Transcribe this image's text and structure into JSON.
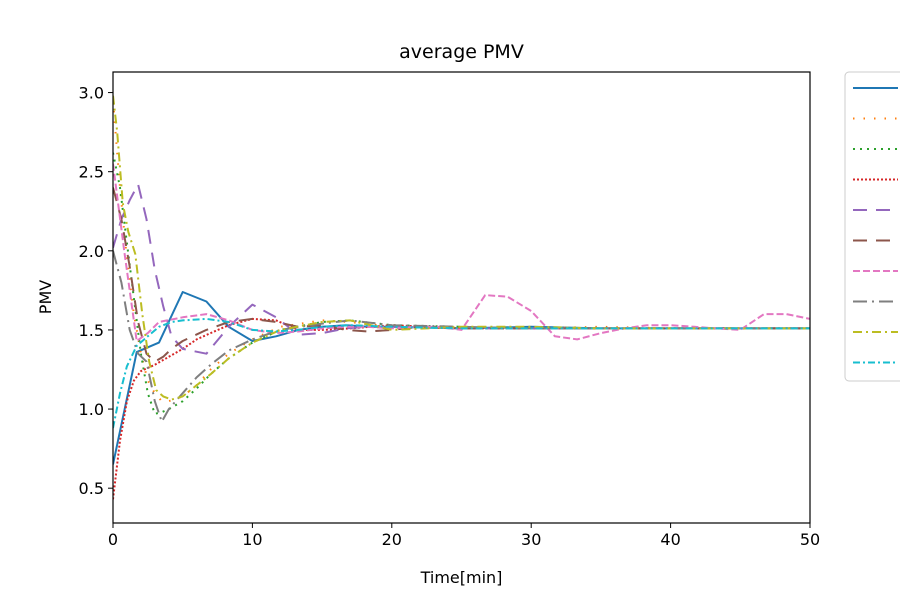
{
  "chart_data": {
    "type": "line",
    "title": "average PMV",
    "xlabel": "Time[min]",
    "ylabel": "PMV",
    "xlim": [
      0,
      50
    ],
    "ylim": [
      0.28,
      3.13
    ],
    "xticks": [
      "0",
      "10",
      "20",
      "30",
      "40",
      "50"
    ],
    "yticks": [
      "0.5",
      "1.0",
      "1.5",
      "2.0",
      "2.5",
      "3.0"
    ],
    "grid": false,
    "legend_position": "outside-right",
    "series": [
      {
        "color": "#1f77b4",
        "dash": "",
        "x": [
          0,
          1.7,
          3.3,
          5,
          6.7,
          8.3,
          10,
          11.7,
          13.3,
          15,
          16.7,
          18.3,
          20,
          25,
          30,
          35,
          40,
          45,
          50
        ],
        "y": [
          0.65,
          1.36,
          1.42,
          1.74,
          1.68,
          1.52,
          1.43,
          1.46,
          1.5,
          1.52,
          1.53,
          1.52,
          1.52,
          1.51,
          1.52,
          1.51,
          1.51,
          1.51,
          1.51
        ]
      },
      {
        "color": "#ff7f0e",
        "dash": "1.5,9",
        "x": [
          0,
          0.5,
          1,
          1.5,
          2,
          2.5,
          3,
          3.5,
          4,
          5,
          6,
          7,
          8.3,
          10,
          12,
          15,
          17,
          20,
          25,
          30,
          35,
          40,
          45,
          50
        ],
        "y": [
          2.95,
          2.4,
          1.95,
          1.6,
          1.35,
          1.18,
          1.1,
          1.05,
          1.05,
          1.08,
          1.15,
          1.25,
          1.35,
          1.44,
          1.52,
          1.56,
          1.55,
          1.52,
          1.51,
          1.51,
          1.52,
          1.51,
          1.51,
          1.51
        ]
      },
      {
        "color": "#2ca02c",
        "dash": "2,5",
        "x": [
          0,
          0.5,
          1,
          1.5,
          2,
          2.5,
          3,
          3.5,
          4,
          5,
          6,
          7,
          8.3,
          10,
          12,
          15,
          17,
          20,
          25,
          30,
          35,
          40,
          45,
          50
        ],
        "y": [
          2.62,
          2.4,
          2.05,
          1.7,
          1.35,
          1.1,
          0.97,
          0.98,
          1.0,
          1.05,
          1.13,
          1.22,
          1.32,
          1.42,
          1.5,
          1.55,
          1.56,
          1.53,
          1.52,
          1.51,
          1.51,
          1.51,
          1.51,
          1.51
        ]
      },
      {
        "color": "#d62728",
        "dash": "2,2",
        "x": [
          0,
          0.5,
          1,
          1.5,
          2,
          3,
          4,
          5,
          6,
          7,
          8.3,
          10,
          11.7,
          13.3,
          15,
          17,
          20,
          25,
          30,
          35,
          40,
          45,
          50
        ],
        "y": [
          0.43,
          0.8,
          1.05,
          1.18,
          1.24,
          1.28,
          1.33,
          1.38,
          1.44,
          1.48,
          1.53,
          1.57,
          1.56,
          1.5,
          1.5,
          1.51,
          1.53,
          1.51,
          1.51,
          1.51,
          1.51,
          1.51,
          1.51
        ]
      },
      {
        "color": "#9467bd",
        "dash": "14,9",
        "x": [
          0,
          0.6,
          1.2,
          1.8,
          2.4,
          3,
          3.6,
          4.2,
          5,
          6.7,
          8.3,
          10,
          11.7,
          13.3,
          15,
          16.7,
          18.3,
          20,
          25,
          30,
          35,
          40,
          45,
          50
        ],
        "y": [
          2.02,
          2.2,
          2.32,
          2.42,
          2.2,
          1.88,
          1.65,
          1.46,
          1.38,
          1.35,
          1.52,
          1.66,
          1.58,
          1.47,
          1.48,
          1.51,
          1.52,
          1.52,
          1.51,
          1.51,
          1.51,
          1.51,
          1.51,
          1.51
        ]
      },
      {
        "color": "#8c564b",
        "dash": "14,9",
        "x": [
          0,
          0.6,
          1.2,
          1.8,
          2.4,
          3,
          3.6,
          4.2,
          5,
          6.7,
          8.3,
          10,
          11.7,
          13.3,
          15,
          16.7,
          18.3,
          20,
          22,
          25,
          30,
          35,
          40,
          45,
          50
        ],
        "y": [
          2.4,
          2.2,
          1.9,
          1.55,
          1.35,
          1.3,
          1.33,
          1.38,
          1.43,
          1.5,
          1.55,
          1.57,
          1.55,
          1.52,
          1.53,
          1.5,
          1.49,
          1.5,
          1.52,
          1.51,
          1.51,
          1.51,
          1.51,
          1.51,
          1.51
        ]
      },
      {
        "color": "#e377c2",
        "dash": "7,3",
        "x": [
          0,
          0.8,
          1.7,
          2.5,
          3.3,
          5,
          6.7,
          8.3,
          10,
          11.7,
          13.3,
          15,
          16.7,
          18.3,
          20,
          21.7,
          23.3,
          25,
          26.7,
          28.3,
          30,
          31.7,
          33.3,
          35,
          36.7,
          38.3,
          40,
          41.7,
          43.3,
          45,
          46.7,
          48.3,
          50
        ],
        "y": [
          2.55,
          2.0,
          1.43,
          1.48,
          1.55,
          1.58,
          1.6,
          1.56,
          1.5,
          1.48,
          1.49,
          1.51,
          1.52,
          1.52,
          1.51,
          1.52,
          1.52,
          1.5,
          1.72,
          1.71,
          1.62,
          1.46,
          1.44,
          1.48,
          1.51,
          1.53,
          1.53,
          1.52,
          1.51,
          1.5,
          1.6,
          1.6,
          1.57
        ]
      },
      {
        "color": "#7f7f7f",
        "dash": "14,5,2,5",
        "x": [
          0,
          0.6,
          1.2,
          1.8,
          2.4,
          3,
          3.5,
          4,
          5,
          6,
          7,
          8.3,
          10,
          12,
          15,
          17,
          20,
          25,
          30,
          35,
          40,
          45,
          50
        ],
        "y": [
          2.0,
          1.8,
          1.5,
          1.35,
          1.3,
          1.05,
          0.92,
          1.0,
          1.1,
          1.2,
          1.28,
          1.37,
          1.44,
          1.5,
          1.54,
          1.56,
          1.53,
          1.52,
          1.51,
          1.51,
          1.51,
          1.51,
          1.51
        ]
      },
      {
        "color": "#bcbd22",
        "dash": "9,4,2,4",
        "x": [
          0,
          0.3,
          0.7,
          1.1,
          1.6,
          2.1,
          2.6,
          3.1,
          3.6,
          4.2,
          5,
          6,
          7,
          8.3,
          10,
          12,
          15,
          17,
          20,
          25,
          30,
          35,
          40,
          45,
          50
        ],
        "y": [
          2.98,
          2.75,
          2.3,
          2.12,
          1.98,
          1.6,
          1.3,
          1.12,
          1.08,
          1.06,
          1.08,
          1.15,
          1.22,
          1.32,
          1.42,
          1.5,
          1.55,
          1.56,
          1.5,
          1.52,
          1.52,
          1.51,
          1.51,
          1.51,
          1.51
        ]
      },
      {
        "color": "#17becf",
        "dash": "7,3,2,3",
        "x": [
          0,
          0.5,
          1,
          1.7,
          2.5,
          3.3,
          4.2,
          5,
          6.7,
          8.3,
          10,
          11.7,
          13.3,
          15,
          17,
          20,
          25,
          30,
          35,
          40,
          45,
          50
        ],
        "y": [
          0.88,
          1.1,
          1.27,
          1.4,
          1.46,
          1.52,
          1.55,
          1.56,
          1.57,
          1.55,
          1.5,
          1.49,
          1.5,
          1.52,
          1.53,
          1.52,
          1.51,
          1.51,
          1.51,
          1.51,
          1.51,
          1.51
        ]
      }
    ]
  }
}
